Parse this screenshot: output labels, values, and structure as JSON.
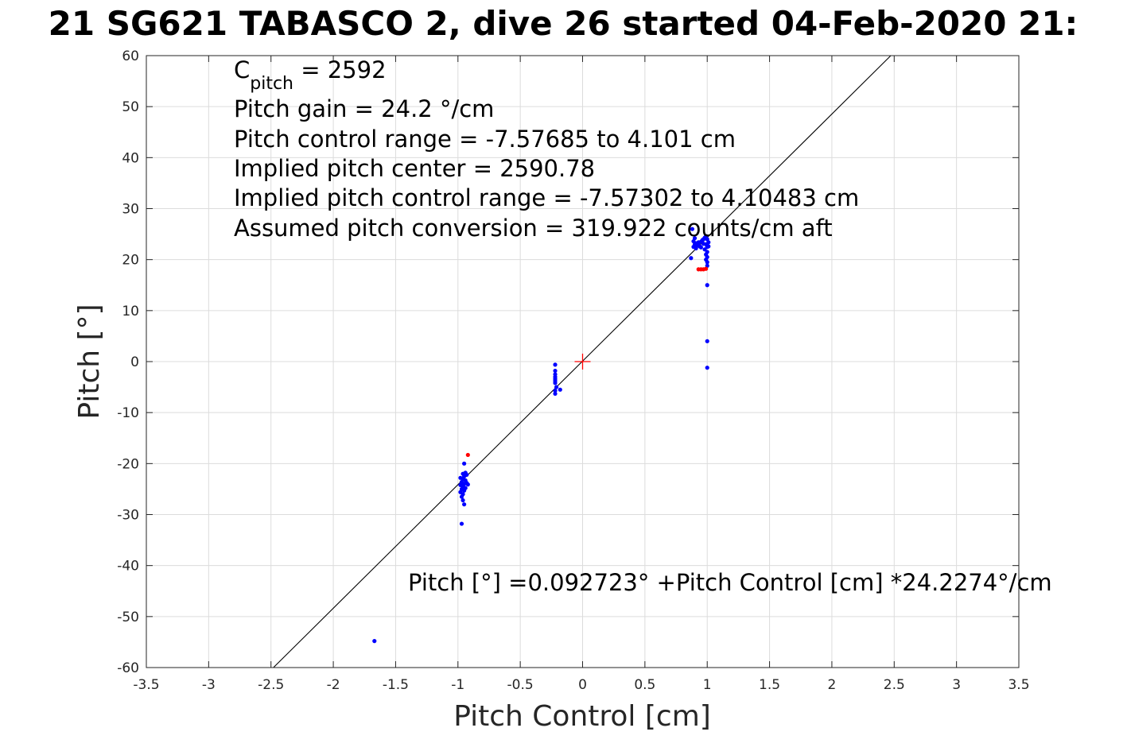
{
  "chart_data": {
    "type": "scatter",
    "title": "21 SG621 TABASCO 2, dive 26 started 04-Feb-2020 21:",
    "xlabel": "Pitch Control [cm]",
    "ylabel": "Pitch [°]",
    "xlim": [
      -3.5,
      3.5
    ],
    "ylim": [
      -60,
      60
    ],
    "x_ticks": [
      -3.5,
      -3,
      -2.5,
      -2,
      -1.5,
      -1,
      -0.5,
      0,
      0.5,
      1,
      1.5,
      2,
      2.5,
      3,
      3.5
    ],
    "x_tick_labels": [
      "-3.5",
      "-3",
      "-2.5",
      "-2",
      "-1.5",
      "-1",
      "-0.5",
      "0",
      "0.5",
      "1",
      "1.5",
      "2",
      "2.5",
      "3",
      "3.5"
    ],
    "y_ticks": [
      -60,
      -50,
      -40,
      -30,
      -20,
      -10,
      0,
      10,
      20,
      30,
      40,
      50,
      60
    ],
    "y_tick_labels": [
      "-60",
      "-50",
      "-40",
      "-30",
      "-20",
      "-10",
      "0",
      "10",
      "20",
      "30",
      "40",
      "50",
      "60"
    ],
    "grid": true,
    "fit_line": {
      "intercept": 0.092723,
      "slope": 24.2274,
      "color": "#000000"
    },
    "center_marker": {
      "x": 0,
      "y": 0,
      "color": "#ff0000"
    },
    "series": [
      {
        "color": "#0000ff",
        "points": [
          [
            -1.67,
            -54.8
          ],
          [
            -0.97,
            -31.8
          ],
          [
            -0.95,
            -28.0
          ],
          [
            -0.96,
            -27.2
          ],
          [
            -0.97,
            -26.5
          ],
          [
            -0.96,
            -26.0
          ],
          [
            -0.98,
            -25.6
          ],
          [
            -0.95,
            -25.3
          ],
          [
            -0.97,
            -25.0
          ],
          [
            -0.94,
            -24.8
          ],
          [
            -0.96,
            -24.5
          ],
          [
            -0.98,
            -24.2
          ],
          [
            -0.95,
            -24.0
          ],
          [
            -0.93,
            -23.8
          ],
          [
            -0.97,
            -23.6
          ],
          [
            -0.94,
            -23.3
          ],
          [
            -0.96,
            -23.0
          ],
          [
            -0.98,
            -22.8
          ],
          [
            -0.95,
            -22.5
          ],
          [
            -0.93,
            -22.2
          ],
          [
            -0.96,
            -22.0
          ],
          [
            -0.94,
            -21.8
          ],
          [
            -0.95,
            -20.0
          ],
          [
            -0.97,
            -24.3
          ],
          [
            -0.92,
            -24.1
          ],
          [
            -0.22,
            -0.6
          ],
          [
            -0.22,
            -1.8
          ],
          [
            -0.22,
            -2.5
          ],
          [
            -0.22,
            -3.0
          ],
          [
            -0.22,
            -3.4
          ],
          [
            -0.22,
            -3.8
          ],
          [
            -0.22,
            -4.2
          ],
          [
            -0.21,
            -5.0
          ],
          [
            -0.22,
            -5.7
          ],
          [
            -0.22,
            -6.3
          ],
          [
            -0.18,
            -5.5
          ],
          [
            0.88,
            26.0
          ],
          [
            0.87,
            20.3
          ],
          [
            0.89,
            22.5
          ],
          [
            0.9,
            23.0
          ],
          [
            0.91,
            23.2
          ],
          [
            0.92,
            22.8
          ],
          [
            0.93,
            23.4
          ],
          [
            0.94,
            22.6
          ],
          [
            0.95,
            23.5
          ],
          [
            0.96,
            23.8
          ],
          [
            0.97,
            24.0
          ],
          [
            0.98,
            24.3
          ],
          [
            0.99,
            24.6
          ],
          [
            1.0,
            24.0
          ],
          [
            0.99,
            23.0
          ],
          [
            1.0,
            22.5
          ],
          [
            0.98,
            22.0
          ],
          [
            1.0,
            21.5
          ],
          [
            0.99,
            21.0
          ],
          [
            1.0,
            20.5
          ],
          [
            0.99,
            20.0
          ],
          [
            1.0,
            19.5
          ],
          [
            1.0,
            18.8
          ],
          [
            1.0,
            15.0
          ],
          [
            1.0,
            4.0
          ],
          [
            1.0,
            -1.2
          ],
          [
            0.89,
            23.6
          ],
          [
            0.91,
            22.2
          ],
          [
            0.93,
            22.9
          ],
          [
            0.95,
            22.4
          ],
          [
            0.97,
            23.1
          ],
          [
            1.01,
            23.4
          ],
          [
            1.01,
            22.6
          ],
          [
            0.9,
            24.2
          ]
        ]
      },
      {
        "color": "#ff0000",
        "points": [
          [
            -0.92,
            -18.3
          ],
          [
            0.93,
            18.1
          ],
          [
            0.95,
            18.1
          ],
          [
            0.97,
            18.1
          ],
          [
            0.99,
            18.2
          ]
        ]
      }
    ],
    "annotations": {
      "c_pitch_base": "C",
      "c_pitch_sub": "pitch",
      "c_pitch_value": " = 2592",
      "pitch_gain": "Pitch gain = 24.2 °/cm",
      "control_range": "Pitch control range = -7.57685 to 4.101 cm",
      "implied_center": "Implied pitch center = 2590.78",
      "implied_range": "Implied pitch control range = -7.57302 to 4.10483 cm",
      "conversion": "Assumed pitch conversion = 319.922 counts/cm aft",
      "fit_equation": "Pitch [°] =0.092723° +Pitch Control [cm] *24.2274°/cm"
    }
  }
}
